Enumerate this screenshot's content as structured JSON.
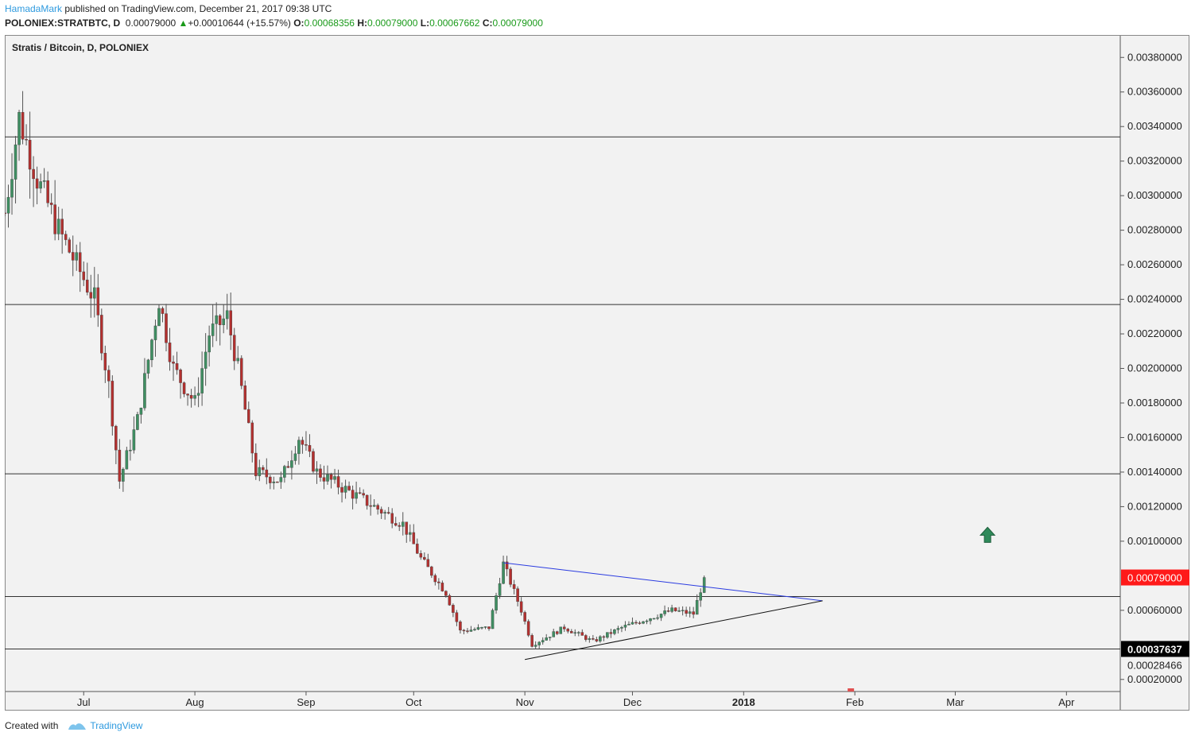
{
  "header": {
    "author": "HamadaMark",
    "published": " published on TradingView.com, December 21, 2017 09:38 UTC",
    "symbol": "POLONIEX:STRATBTC, D",
    "last": "0.00079000",
    "change": "+0.00010644 (+15.57%)",
    "o_label": "O:",
    "o_value": "0.00068356",
    "h_label": "H:",
    "h_value": "0.00079000",
    "l_label": "L:",
    "l_value": "0.00067662",
    "c_label": "C:",
    "c_value": "0.00079000"
  },
  "footer": {
    "created_with": "Created with",
    "brand": "TradingView"
  },
  "colors": {
    "background": "#f2f2f2",
    "up_candle": "#3f8f62",
    "down_candle": "#b3302f",
    "wick": "#555555",
    "upper_trendline": "#2a3be0",
    "lower_trendline": "#111111",
    "last_price_tag": "#ff1a1a",
    "current_tag": "#000000",
    "arrow": "#2f8a5a"
  },
  "chart_data": {
    "type": "candlestick",
    "title": "Stratis / Bitcoin, D, POLONIEX",
    "x_labels": [
      "Jul",
      "Aug",
      "Sep",
      "Oct",
      "Nov",
      "Dec",
      "2018",
      "Feb",
      "Mar",
      "Apr"
    ],
    "x_range": [
      "2017-06-09",
      "2018-04-16"
    ],
    "ylim": [
      0.00013,
      0.00393
    ],
    "y_ticks": [
      0.0002,
      0.0006,
      0.001,
      0.0012,
      0.0014,
      0.0016,
      0.0018,
      0.002,
      0.0022,
      0.0024,
      0.0026,
      0.0028,
      0.003,
      0.0032,
      0.0034,
      0.0036,
      0.0038
    ],
    "y_tick_labels": [
      "0.00020000",
      "0.00060000",
      "0.00100000",
      "0.00120000",
      "0.00140000",
      "0.00160000",
      "0.00180000",
      "0.00200000",
      "0.00220000",
      "0.00240000",
      "0.00260000",
      "0.00280000",
      "0.00300000",
      "0.00320000",
      "0.00340000",
      "0.00360000",
      "0.00380000"
    ],
    "horizontal_levels": [
      0.00334,
      0.00237,
      0.00139,
      0.00068,
      0.000376
    ],
    "price_tags": [
      {
        "label": "0.00079000",
        "value": 0.00079,
        "style": "last"
      },
      {
        "label": "0.00037637",
        "value": 0.00037637,
        "style": "current"
      },
      {
        "label": "0.00028466",
        "value": 0.00028466,
        "style": "plain"
      }
    ],
    "trendlines": [
      {
        "name": "upper",
        "from": [
          "2017-10-26",
          0.000875
        ],
        "to": [
          "2018-01-23",
          0.000655
        ]
      },
      {
        "name": "lower",
        "from": [
          "2017-11-01",
          0.000315
        ],
        "to": [
          "2018-01-23",
          0.000655
        ]
      }
    ],
    "marker": {
      "type": "up-arrow",
      "date": "2018-03-10",
      "value": 0.00103
    },
    "anchors": [
      [
        "2017-06-09",
        0.0029
      ],
      [
        "2017-06-13",
        0.00345
      ],
      [
        "2017-06-18",
        0.0031
      ],
      [
        "2017-06-24",
        0.0028
      ],
      [
        "2017-06-29",
        0.0026
      ],
      [
        "2017-07-04",
        0.0024
      ],
      [
        "2017-07-08",
        0.0019
      ],
      [
        "2017-07-11",
        0.00135
      ],
      [
        "2017-07-16",
        0.0017
      ],
      [
        "2017-07-22",
        0.0024
      ],
      [
        "2017-07-26",
        0.002
      ],
      [
        "2017-08-01",
        0.0018
      ],
      [
        "2017-08-05",
        0.0022
      ],
      [
        "2017-08-10",
        0.0023
      ],
      [
        "2017-08-13",
        0.002
      ],
      [
        "2017-08-18",
        0.0014
      ],
      [
        "2017-08-25",
        0.00135
      ],
      [
        "2017-08-30",
        0.0016
      ],
      [
        "2017-09-04",
        0.0014
      ],
      [
        "2017-09-12",
        0.0013
      ],
      [
        "2017-09-20",
        0.0012
      ],
      [
        "2017-09-28",
        0.0011
      ],
      [
        "2017-10-03",
        0.0009
      ],
      [
        "2017-10-10",
        0.0007
      ],
      [
        "2017-10-14",
        0.00048
      ],
      [
        "2017-10-22",
        0.0005
      ],
      [
        "2017-10-26",
        0.00087
      ],
      [
        "2017-10-31",
        0.0006
      ],
      [
        "2017-11-03",
        0.0004
      ],
      [
        "2017-11-12",
        0.0005
      ],
      [
        "2017-11-20",
        0.00042
      ],
      [
        "2017-11-28",
        0.0005
      ],
      [
        "2017-12-05",
        0.00055
      ],
      [
        "2017-12-12",
        0.0006
      ],
      [
        "2017-12-18",
        0.00058
      ],
      [
        "2017-12-21",
        0.00079
      ]
    ]
  }
}
